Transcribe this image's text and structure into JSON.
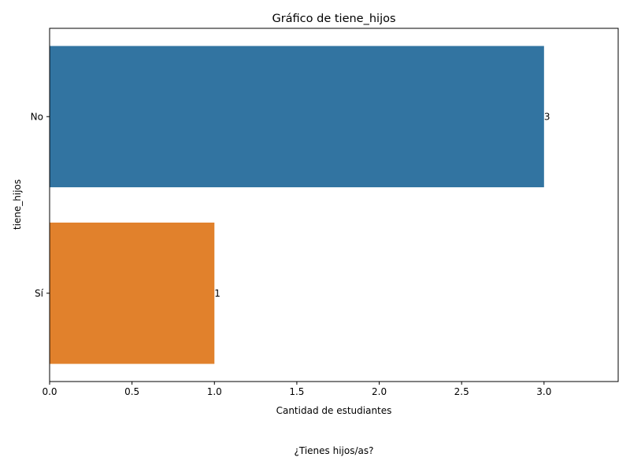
{
  "chart_data": {
    "type": "bar",
    "orientation": "horizontal",
    "title": "Gráfico de tiene_hijos",
    "xlabel": "Cantidad de estudiantes",
    "ylabel": "tiene_hijos",
    "categories": [
      "No",
      "Sí"
    ],
    "values": [
      3,
      1
    ],
    "data_labels": [
      "3",
      "1"
    ],
    "colors": [
      "#3274a1",
      "#e1812c"
    ],
    "xlim": [
      0,
      3.45
    ],
    "xticks": [
      "0.0",
      "0.5",
      "1.0",
      "1.5",
      "2.0",
      "2.5",
      "3.0"
    ],
    "grid": false
  },
  "caption": "¿Tienes hijos/as?"
}
